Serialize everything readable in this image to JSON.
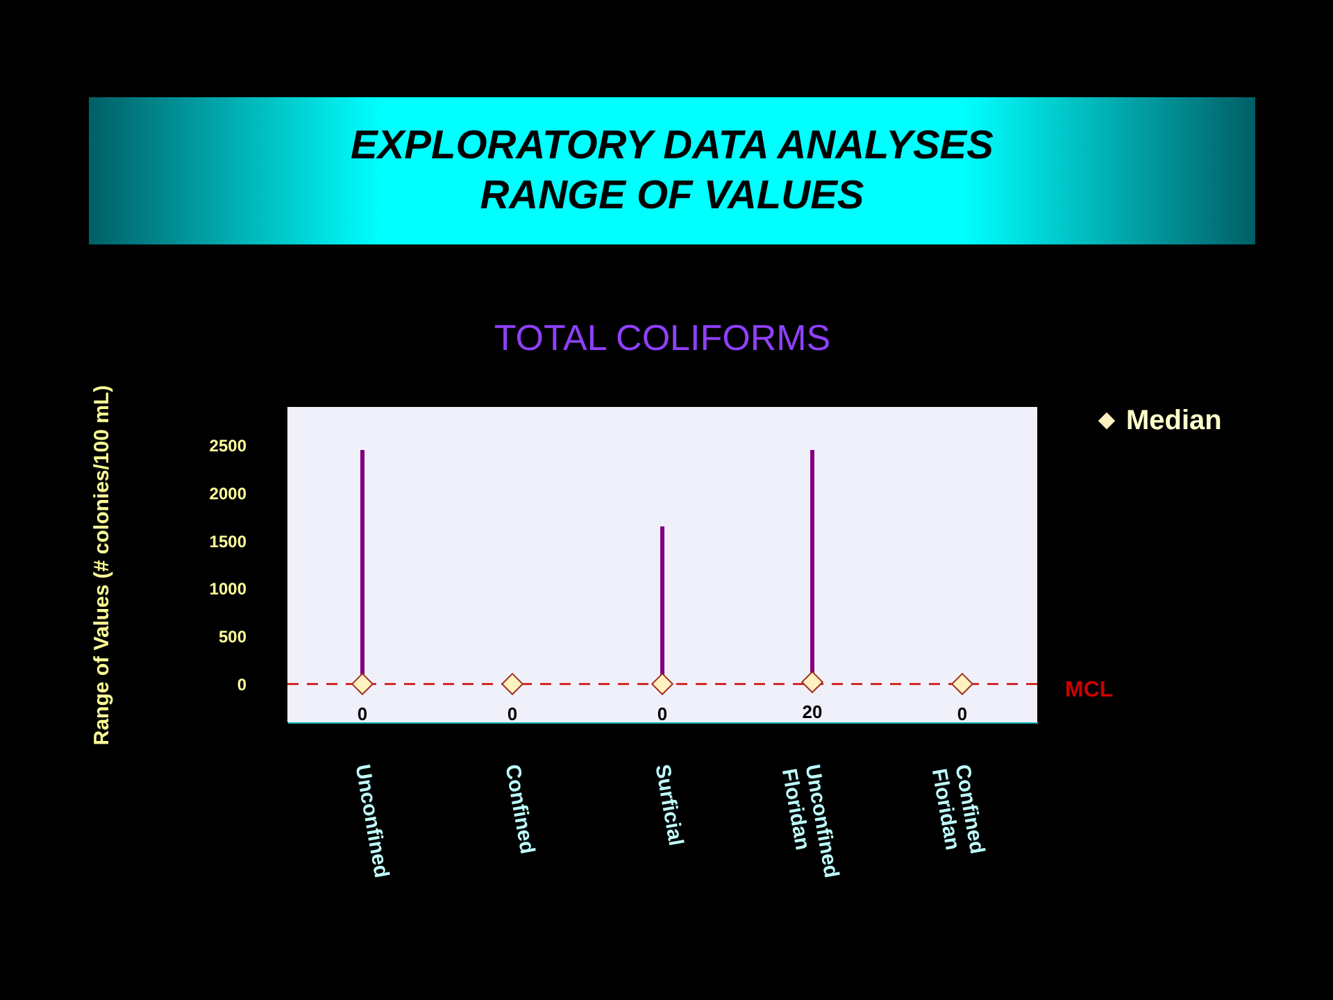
{
  "chart_data": {
    "type": "scatter",
    "title": "EXPLORATORY DATA ANALYSES\nRANGE OF VALUES",
    "subtitle": "TOTAL COLIFORMS",
    "ylabel": "Range of Values (# colonies/100 mL)",
    "categories": [
      "Unconfined",
      "Confined",
      "Surficial",
      "Unconfined Floridan",
      "Confined Floridan"
    ],
    "series": [
      {
        "name": "Median",
        "color": "#fff2c0",
        "values": [
          0,
          0,
          0,
          20,
          0
        ],
        "errors": [
          [
            0,
            2450
          ],
          null,
          [
            0,
            1650
          ],
          [
            0,
            2450
          ],
          null
        ]
      }
    ],
    "marker": "diamond",
    "data_labels": true,
    "ylim": [
      -400,
      2900
    ],
    "yticks": [
      0,
      500,
      1000,
      1500,
      2000,
      2500
    ],
    "grid": false,
    "legend": "right",
    "ref_lines": [
      {
        "axis": "y",
        "value": 0,
        "label": "MCL",
        "color": "#cc0000",
        "line_style": "dashed"
      }
    ]
  }
}
